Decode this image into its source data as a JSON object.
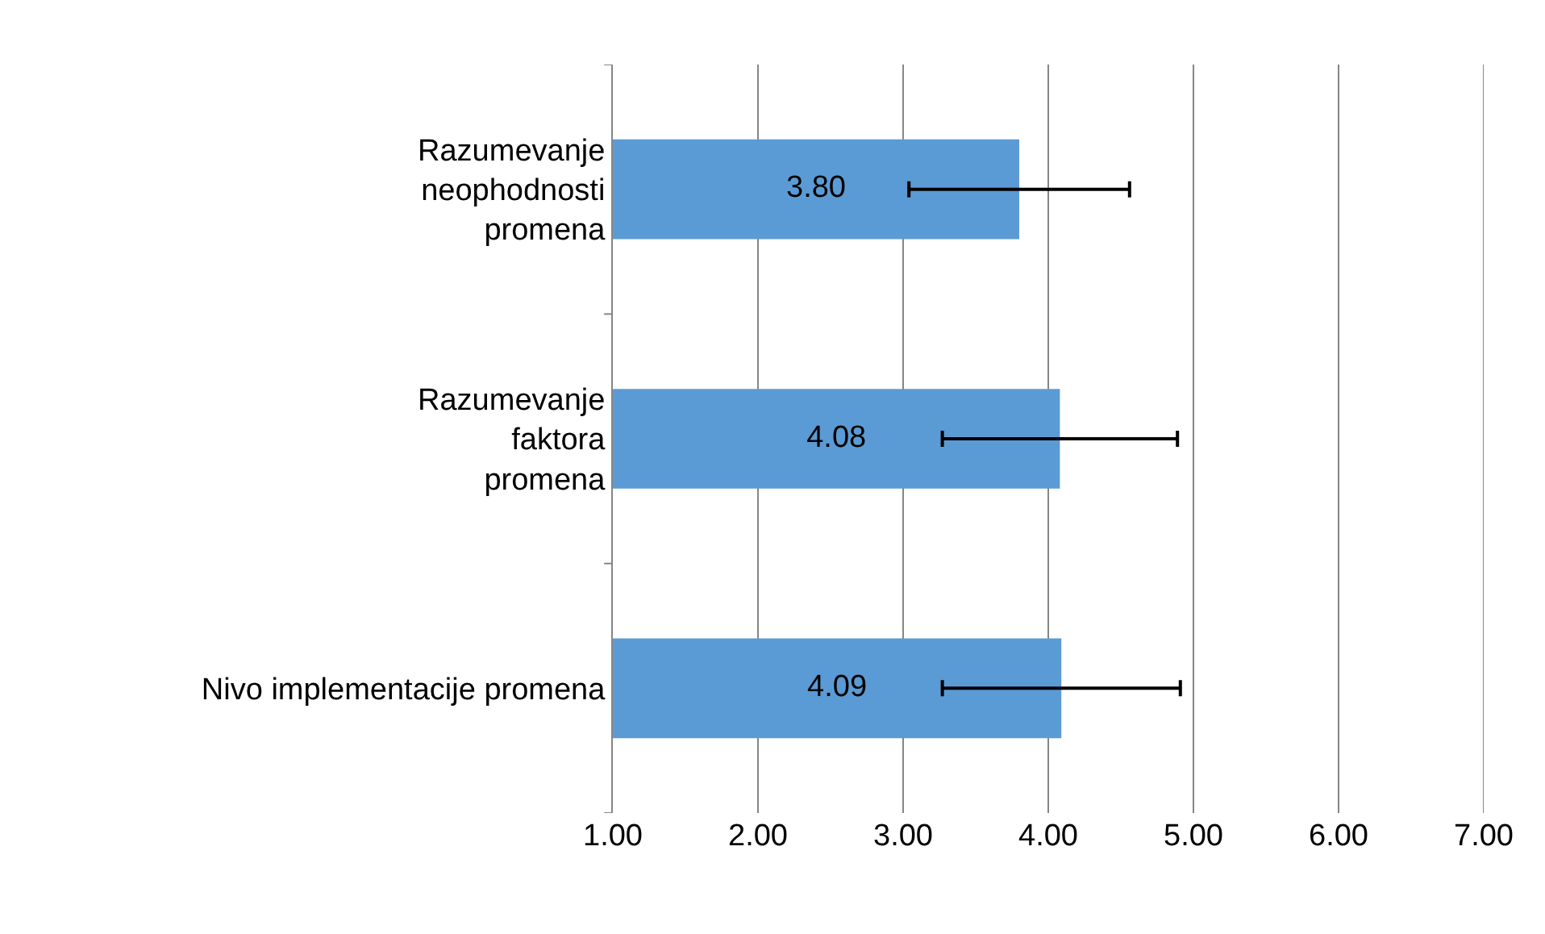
{
  "chart_data": {
    "type": "bar",
    "orientation": "horizontal",
    "categories": [
      "Razumevanje\nneophodnosti\npromena",
      "Razumevanje\nfaktora\npromena",
      "Nivo implementacije promena"
    ],
    "values": [
      3.8,
      4.08,
      4.09
    ],
    "errors": [
      0.76,
      0.81,
      0.82
    ],
    "color": "#5b9bd5",
    "value_labels": [
      "3.80",
      "4.08",
      "4.09"
    ],
    "xlim": [
      1,
      7
    ],
    "xticks": [
      {
        "value": 1,
        "label": "1.00"
      },
      {
        "value": 2,
        "label": "2.00"
      },
      {
        "value": 3,
        "label": "3.00"
      },
      {
        "value": 4,
        "label": "4.00"
      },
      {
        "value": 5,
        "label": "5.00"
      },
      {
        "value": 6,
        "label": "6.00"
      },
      {
        "value": 7,
        "label": "7.00"
      }
    ],
    "grid": "x",
    "legend": false
  }
}
